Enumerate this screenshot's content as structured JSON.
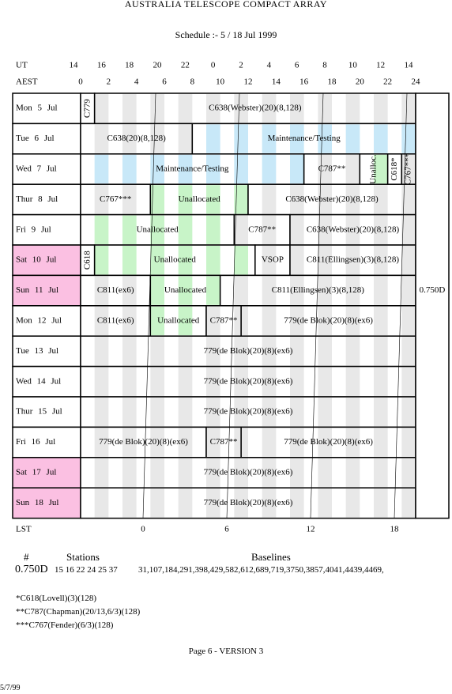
{
  "header": {
    "title": "AUSTRALIA TELESCOPE COMPACT ARRAY",
    "subtitle": "Schedule :- 5 / 18 Jul 1999"
  },
  "axes": {
    "ut_label": "UT",
    "ut_ticks": [
      14,
      16,
      18,
      20,
      22,
      0,
      2,
      4,
      6,
      8,
      10,
      12,
      14
    ],
    "aest_label": "AEST",
    "aest_ticks": [
      0,
      2,
      4,
      6,
      8,
      10,
      12,
      14,
      16,
      18,
      20,
      22,
      24
    ],
    "lst_label": "LST",
    "lst_ticks": [
      0,
      6,
      12,
      18
    ]
  },
  "schedule": {
    "config": "0.750D",
    "rows": [
      {
        "day": "Mon 5 Jul",
        "highlight": false,
        "blocks": [
          "C779",
          "C638(Webster)(20)(8,128)"
        ]
      },
      {
        "day": "Tue 6 Jul",
        "highlight": false,
        "blocks": [
          "C638(20)(8,128)",
          "Maintenance/Testing"
        ]
      },
      {
        "day": "Wed 7 Jul",
        "highlight": false,
        "blocks": [
          "Maintenance/Testing",
          "C787**",
          "Unalloc.",
          "C618*",
          "C767***"
        ]
      },
      {
        "day": "Thur 8 Jul",
        "highlight": false,
        "blocks": [
          "C767***",
          "Unallocated",
          "C638(Webster)(20)(8,128)"
        ]
      },
      {
        "day": "Fri 9 Jul",
        "highlight": false,
        "blocks": [
          "Unallocated",
          "C787**",
          "C638(Webster)(20)(8,128)"
        ]
      },
      {
        "day": "Sat 10 Jul",
        "highlight": true,
        "blocks": [
          "C618",
          "Unallocated",
          "VSOP",
          "C811(Ellingsen)(3)(8,128)"
        ]
      },
      {
        "day": "Sun 11 Jul",
        "highlight": true,
        "blocks": [
          "C811(ex6)",
          "Unallocated",
          "C811(Ellingsen)(3)(8,128)"
        ]
      },
      {
        "day": "Mon 12 Jul",
        "highlight": false,
        "blocks": [
          "C811(ex6)",
          "Unallocated",
          "C787**",
          "779(de Blok)(20)(8)(ex6)"
        ]
      },
      {
        "day": "Tue 13 Jul",
        "highlight": false,
        "blocks": [
          "779(de Blok)(20)(8)(ex6)"
        ]
      },
      {
        "day": "Wed 14 Jul",
        "highlight": false,
        "blocks": [
          "779(de Blok)(20)(8)(ex6)"
        ]
      },
      {
        "day": "Thur 15 Jul",
        "highlight": false,
        "blocks": [
          "779(de Blok)(20)(8)(ex6)"
        ]
      },
      {
        "day": "Fri 16 Jul",
        "highlight": false,
        "blocks": [
          "779(de Blok)(20)(8)(ex6)",
          "C787**",
          "779(de Blok)(20)(8)(ex6)"
        ]
      },
      {
        "day": "Sat 17 Jul",
        "highlight": true,
        "blocks": [
          "779(de Blok)(20)(8)(ex6)"
        ]
      },
      {
        "day": "Sun 18 Jul",
        "highlight": true,
        "blocks": [
          "779(de Blok)(20)(8)(ex6)"
        ]
      }
    ]
  },
  "stations": {
    "hash_header": "#",
    "stations_header": "Stations",
    "baselines_header": "Baselines",
    "config": "0.750D",
    "stations": "15 16 22 24 25 37",
    "baselines": "31,107,184,291,398,429,582,612,689,719,3750,3857,4041,4439,4469,"
  },
  "notes": [
    "*C618(Lovell)(3)(128)",
    "**C787(Chapman)(20/13,6/3)(128)",
    "***C767(Fender)(6/3)(128)"
  ],
  "page": "Page 6 - VERSION 3",
  "date": "5/7/99"
}
